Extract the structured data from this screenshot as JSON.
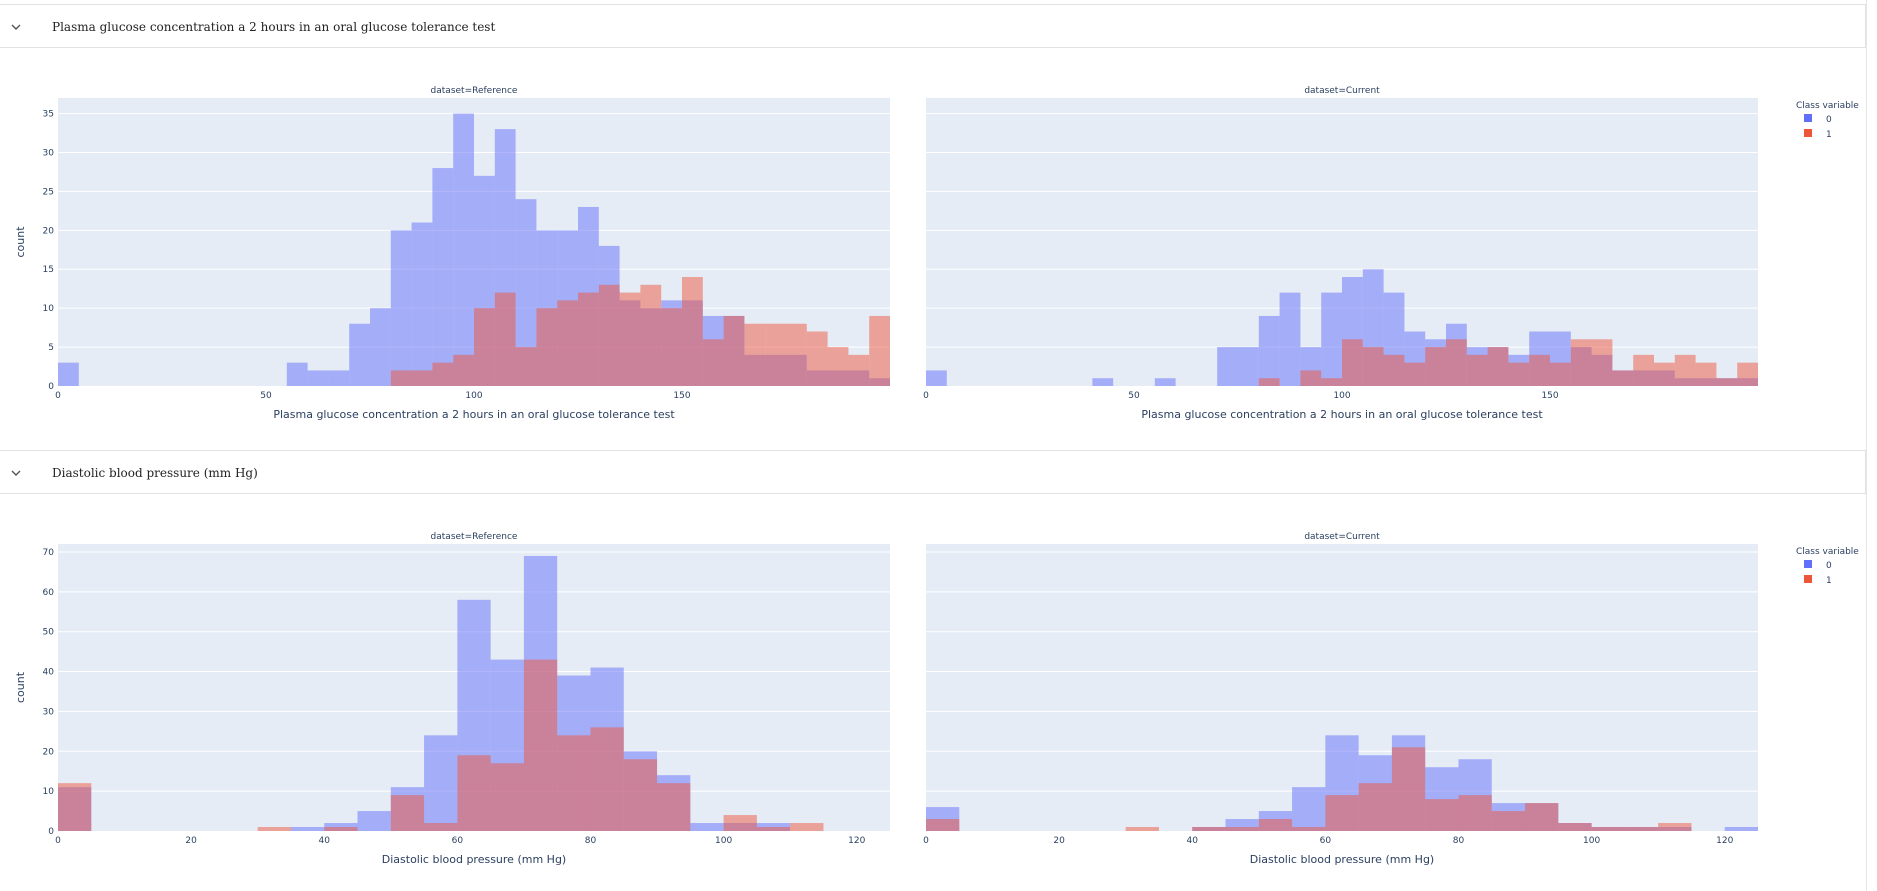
{
  "sections": [
    {
      "title": "Plasma glucose concentration a 2 hours in an oral glucose tolerance test"
    },
    {
      "title": "Diastolic blood pressure (mm Hg)"
    }
  ],
  "colors": {
    "class0": "#636efa",
    "class1": "#ef553b",
    "plot_bg": "#e5ecf6"
  },
  "chart_data": [
    {
      "type": "histogram",
      "ylabel": "count",
      "legend": {
        "title": "Class variable",
        "items": [
          "0",
          "1"
        ],
        "position": "top-right"
      },
      "xlim": [
        0,
        200
      ],
      "ylim": [
        0,
        37
      ],
      "yticks": [
        0,
        5,
        10,
        15,
        20,
        25,
        30,
        35
      ],
      "xticks": [
        0,
        50,
        100,
        150
      ],
      "bin_start": 0,
      "bin_width": 5,
      "panels": [
        {
          "title": "dataset=Reference",
          "xlabel": "Plasma glucose concentration a 2 hours in an oral glucose tolerance test",
          "series": [
            {
              "name": "0",
              "values": [
                3,
                0,
                0,
                0,
                0,
                0,
                0,
                0,
                0,
                0,
                0,
                3,
                2,
                2,
                8,
                10,
                20,
                21,
                28,
                35,
                27,
                33,
                24,
                20,
                20,
                23,
                18,
                11,
                10,
                11,
                11,
                9,
                9,
                4,
                4,
                4,
                2,
                2,
                2,
                1
              ]
            },
            {
              "name": "1",
              "values": [
                0,
                0,
                0,
                0,
                0,
                0,
                0,
                0,
                0,
                0,
                0,
                0,
                0,
                0,
                0,
                0,
                2,
                2,
                3,
                4,
                10,
                12,
                5,
                10,
                11,
                12,
                13,
                12,
                13,
                10,
                14,
                6,
                9,
                8,
                8,
                8,
                7,
                5,
                4,
                9
              ]
            }
          ]
        },
        {
          "title": "dataset=Current",
          "xlabel": "Plasma glucose concentration a 2 hours in an oral glucose tolerance test",
          "series": [
            {
              "name": "0",
              "values": [
                2,
                0,
                0,
                0,
                0,
                0,
                0,
                0,
                1,
                0,
                0,
                1,
                0,
                0,
                5,
                5,
                9,
                12,
                5,
                12,
                14,
                15,
                12,
                7,
                6,
                8,
                5,
                5,
                4,
                7,
                7,
                5,
                4,
                2,
                2,
                2,
                1,
                1,
                1,
                1
              ]
            },
            {
              "name": "1",
              "values": [
                0,
                0,
                0,
                0,
                0,
                0,
                0,
                0,
                0,
                0,
                0,
                0,
                0,
                0,
                0,
                0,
                1,
                0,
                2,
                1,
                6,
                5,
                4,
                3,
                5,
                6,
                4,
                5,
                3,
                4,
                3,
                6,
                6,
                2,
                4,
                3,
                4,
                3,
                1,
                3
              ]
            }
          ]
        }
      ]
    },
    {
      "type": "histogram",
      "ylabel": "count",
      "legend": {
        "title": "Class variable",
        "items": [
          "0",
          "1"
        ],
        "position": "top-right"
      },
      "xlim": [
        0,
        125
      ],
      "ylim": [
        0,
        72
      ],
      "yticks": [
        0,
        10,
        20,
        30,
        40,
        50,
        60,
        70
      ],
      "xticks": [
        0,
        20,
        40,
        60,
        80,
        100,
        120
      ],
      "bin_start": 0,
      "bin_width": 5,
      "panels": [
        {
          "title": "dataset=Reference",
          "xlabel": "Diastolic blood pressure (mm Hg)",
          "series": [
            {
              "name": "0",
              "values": [
                11,
                0,
                0,
                0,
                0,
                0,
                0,
                1,
                2,
                5,
                11,
                24,
                58,
                43,
                69,
                39,
                41,
                20,
                14,
                2,
                2,
                2,
                0,
                0,
                0
              ]
            },
            {
              "name": "1",
              "values": [
                12,
                0,
                0,
                0,
                0,
                0,
                1,
                0,
                1,
                0,
                9,
                2,
                19,
                17,
                43,
                24,
                26,
                18,
                12,
                0,
                4,
                1,
                2,
                0,
                0
              ]
            }
          ]
        },
        {
          "title": "dataset=Current",
          "xlabel": "Diastolic blood pressure (mm Hg)",
          "series": [
            {
              "name": "0",
              "values": [
                6,
                0,
                0,
                0,
                0,
                0,
                0,
                0,
                1,
                3,
                5,
                11,
                24,
                19,
                24,
                16,
                18,
                7,
                7,
                2,
                1,
                1,
                1,
                0,
                1
              ]
            },
            {
              "name": "1",
              "values": [
                3,
                0,
                0,
                0,
                0,
                0,
                1,
                0,
                1,
                1,
                3,
                1,
                9,
                12,
                21,
                8,
                9,
                5,
                7,
                2,
                1,
                1,
                2,
                0,
                0
              ]
            }
          ]
        }
      ]
    }
  ]
}
